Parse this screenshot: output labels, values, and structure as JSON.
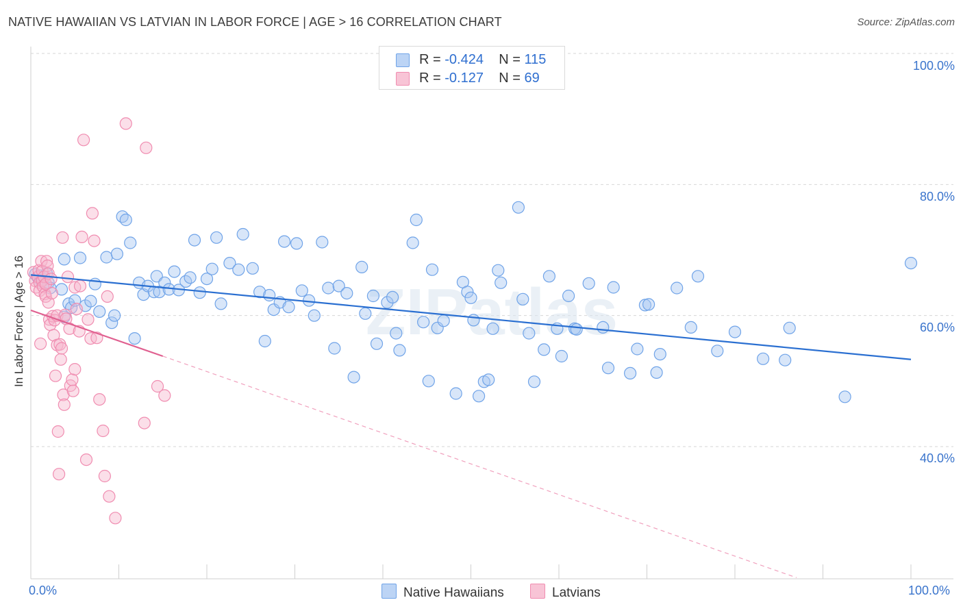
{
  "title": "NATIVE HAWAIIAN VS LATVIAN IN LABOR FORCE | AGE > 16 CORRELATION CHART",
  "source": "Source: ZipAtlas.com",
  "watermark": "ZIPatlas",
  "legend": {
    "rows": [
      {
        "r_label": "R = ",
        "r_value": "-0.424",
        "n_label": "N = ",
        "n_value": "115"
      },
      {
        "r_label": "R = ",
        "r_value": " -0.127",
        "n_label": "N = ",
        "n_value": "69"
      }
    ]
  },
  "bottom_legend": [
    "Native Hawaiians",
    "Latvians"
  ],
  "chart_data": {
    "type": "scatter",
    "xlabel": "",
    "ylabel": "In Labor Force | Age > 16",
    "x_tick_labels": [
      "0.0%",
      "100.0%"
    ],
    "y_tick_labels": [
      "100.0%",
      "80.0%",
      "60.0%",
      "40.0%"
    ],
    "xlim": [
      0,
      100
    ],
    "ylim": [
      20,
      102
    ],
    "grid": true,
    "colors": {
      "blue": "#6fa3e8",
      "pink": "#f08cb0",
      "blue_line": "#2a6fd1",
      "pink_line": "#e06090"
    },
    "series": [
      {
        "name": "Native Hawaiians",
        "r": -0.424,
        "n": 115,
        "trend": {
          "x": [
            0,
            100
          ],
          "y": [
            66.2,
            53.3
          ]
        },
        "points": [
          [
            0.5,
            66.3
          ],
          [
            0.8,
            65.8
          ],
          [
            1.0,
            66.1
          ],
          [
            1.2,
            65.2
          ],
          [
            1.5,
            65.9
          ],
          [
            1.8,
            66.4
          ],
          [
            2.0,
            65.0
          ],
          [
            2.2,
            64.2
          ],
          [
            3.5,
            64.0
          ],
          [
            3.8,
            59.8
          ],
          [
            3.8,
            68.6
          ],
          [
            4.3,
            61.8
          ],
          [
            4.6,
            61.2
          ],
          [
            5.0,
            62.3
          ],
          [
            5.6,
            68.8
          ],
          [
            6.2,
            61.5
          ],
          [
            6.8,
            62.2
          ],
          [
            7.3,
            64.8
          ],
          [
            7.8,
            60.6
          ],
          [
            8.6,
            68.9
          ],
          [
            9.2,
            58.9
          ],
          [
            9.5,
            60.0
          ],
          [
            9.8,
            69.4
          ],
          [
            10.4,
            75.1
          ],
          [
            10.8,
            74.6
          ],
          [
            11.3,
            71.1
          ],
          [
            11.8,
            56.5
          ],
          [
            12.3,
            65.0
          ],
          [
            12.8,
            63.2
          ],
          [
            13.3,
            64.5
          ],
          [
            14.0,
            63.6
          ],
          [
            14.3,
            66.0
          ],
          [
            14.6,
            63.6
          ],
          [
            15.2,
            65.0
          ],
          [
            15.7,
            64.0
          ],
          [
            16.3,
            66.7
          ],
          [
            16.8,
            63.9
          ],
          [
            17.6,
            65.2
          ],
          [
            18.1,
            65.8
          ],
          [
            18.6,
            71.5
          ],
          [
            19.2,
            63.5
          ],
          [
            20.0,
            65.6
          ],
          [
            20.6,
            67.1
          ],
          [
            21.1,
            71.9
          ],
          [
            21.6,
            61.8
          ],
          [
            22.6,
            68.0
          ],
          [
            23.6,
            67.0
          ],
          [
            24.1,
            72.4
          ],
          [
            25.2,
            67.2
          ],
          [
            26.0,
            63.6
          ],
          [
            26.6,
            56.1
          ],
          [
            27.1,
            63.1
          ],
          [
            27.6,
            60.9
          ],
          [
            28.3,
            62.0
          ],
          [
            28.8,
            71.3
          ],
          [
            29.3,
            61.3
          ],
          [
            30.2,
            71.0
          ],
          [
            30.8,
            63.8
          ],
          [
            31.6,
            62.3
          ],
          [
            32.2,
            60.0
          ],
          [
            33.1,
            71.2
          ],
          [
            33.8,
            64.2
          ],
          [
            34.5,
            55.0
          ],
          [
            35.0,
            64.5
          ],
          [
            35.9,
            63.4
          ],
          [
            36.7,
            50.6
          ],
          [
            37.6,
            67.4
          ],
          [
            38.0,
            60.3
          ],
          [
            38.9,
            63.0
          ],
          [
            39.3,
            55.7
          ],
          [
            40.5,
            62.0
          ],
          [
            41.1,
            62.8
          ],
          [
            41.5,
            57.3
          ],
          [
            41.9,
            54.7
          ],
          [
            43.4,
            71.1
          ],
          [
            43.8,
            74.6
          ],
          [
            44.6,
            59.0
          ],
          [
            45.2,
            50.0
          ],
          [
            45.6,
            67.0
          ],
          [
            46.2,
            58.1
          ],
          [
            46.9,
            59.2
          ],
          [
            48.3,
            48.1
          ],
          [
            49.1,
            65.1
          ],
          [
            49.6,
            63.6
          ],
          [
            50.0,
            62.7
          ],
          [
            50.3,
            59.3
          ],
          [
            50.9,
            47.7
          ],
          [
            51.5,
            49.9
          ],
          [
            52.0,
            50.2
          ],
          [
            52.5,
            58.0
          ],
          [
            53.1,
            66.9
          ],
          [
            53.4,
            65.0
          ],
          [
            55.4,
            76.5
          ],
          [
            55.9,
            62.5
          ],
          [
            56.6,
            57.3
          ],
          [
            57.2,
            49.9
          ],
          [
            58.3,
            54.8
          ],
          [
            58.9,
            66.0
          ],
          [
            59.8,
            58.0
          ],
          [
            60.3,
            53.8
          ],
          [
            61.1,
            63.0
          ],
          [
            61.8,
            58.0
          ],
          [
            62.0,
            57.9
          ],
          [
            63.4,
            64.9
          ],
          [
            65.0,
            58.2
          ],
          [
            65.6,
            52.0
          ],
          [
            66.2,
            64.3
          ],
          [
            68.1,
            51.2
          ],
          [
            68.9,
            54.9
          ],
          [
            69.8,
            61.6
          ],
          [
            70.2,
            61.7
          ],
          [
            71.1,
            51.3
          ],
          [
            71.5,
            54.1
          ],
          [
            73.4,
            64.2
          ],
          [
            75.0,
            58.2
          ],
          [
            75.8,
            66.0
          ],
          [
            78.0,
            54.6
          ],
          [
            80.0,
            57.5
          ],
          [
            83.2,
            53.4
          ],
          [
            85.7,
            53.2
          ],
          [
            86.2,
            58.1
          ],
          [
            92.5,
            47.6
          ],
          [
            100.0,
            68.0
          ]
        ]
      },
      {
        "name": "Latvians",
        "r": -0.127,
        "n": 69,
        "trend": {
          "x": [
            0,
            15
          ],
          "y": [
            60.8,
            53.8
          ]
        },
        "trend_extension": {
          "x": [
            15,
            87
          ],
          "y": [
            53.8,
            20.0
          ]
        },
        "points": [
          [
            0.3,
            66.6
          ],
          [
            0.5,
            65.3
          ],
          [
            0.6,
            64.3
          ],
          [
            0.8,
            65.9
          ],
          [
            0.9,
            66.9
          ],
          [
            1.0,
            65.0
          ],
          [
            1.0,
            63.8
          ],
          [
            1.1,
            55.7
          ],
          [
            1.2,
            68.3
          ],
          [
            1.3,
            66.8
          ],
          [
            1.3,
            65.3
          ],
          [
            1.4,
            64.4
          ],
          [
            1.5,
            65.9
          ],
          [
            1.6,
            63.3
          ],
          [
            1.7,
            64.8
          ],
          [
            1.7,
            62.9
          ],
          [
            1.8,
            68.3
          ],
          [
            1.9,
            67.6
          ],
          [
            2.0,
            66.4
          ],
          [
            2.0,
            62.0
          ],
          [
            2.1,
            59.4
          ],
          [
            2.2,
            58.6
          ],
          [
            2.3,
            65.6
          ],
          [
            2.4,
            63.4
          ],
          [
            2.5,
            59.9
          ],
          [
            2.6,
            57.0
          ],
          [
            2.7,
            59.3
          ],
          [
            2.8,
            50.8
          ],
          [
            3.0,
            60.0
          ],
          [
            3.0,
            55.5
          ],
          [
            3.1,
            42.3
          ],
          [
            3.2,
            35.8
          ],
          [
            3.3,
            55.6
          ],
          [
            3.4,
            53.3
          ],
          [
            3.5,
            55.0
          ],
          [
            3.6,
            71.9
          ],
          [
            3.7,
            47.9
          ],
          [
            3.8,
            46.4
          ],
          [
            3.9,
            60.1
          ],
          [
            4.0,
            59.5
          ],
          [
            4.2,
            65.9
          ],
          [
            4.4,
            58.0
          ],
          [
            4.5,
            49.3
          ],
          [
            4.7,
            50.2
          ],
          [
            4.8,
            48.5
          ],
          [
            5.0,
            51.8
          ],
          [
            5.0,
            64.3
          ],
          [
            5.2,
            61.0
          ],
          [
            5.5,
            57.6
          ],
          [
            5.6,
            64.5
          ],
          [
            5.8,
            72.0
          ],
          [
            6.0,
            86.8
          ],
          [
            6.3,
            38.0
          ],
          [
            6.5,
            59.4
          ],
          [
            6.8,
            56.5
          ],
          [
            7.0,
            75.6
          ],
          [
            7.2,
            71.4
          ],
          [
            7.5,
            56.6
          ],
          [
            7.8,
            47.2
          ],
          [
            8.2,
            42.4
          ],
          [
            8.4,
            35.5
          ],
          [
            8.7,
            62.9
          ],
          [
            8.9,
            32.4
          ],
          [
            9.6,
            29.1
          ],
          [
            10.8,
            89.3
          ],
          [
            12.9,
            43.6
          ],
          [
            13.1,
            85.6
          ],
          [
            14.4,
            49.2
          ],
          [
            15.2,
            47.8
          ]
        ]
      }
    ]
  }
}
